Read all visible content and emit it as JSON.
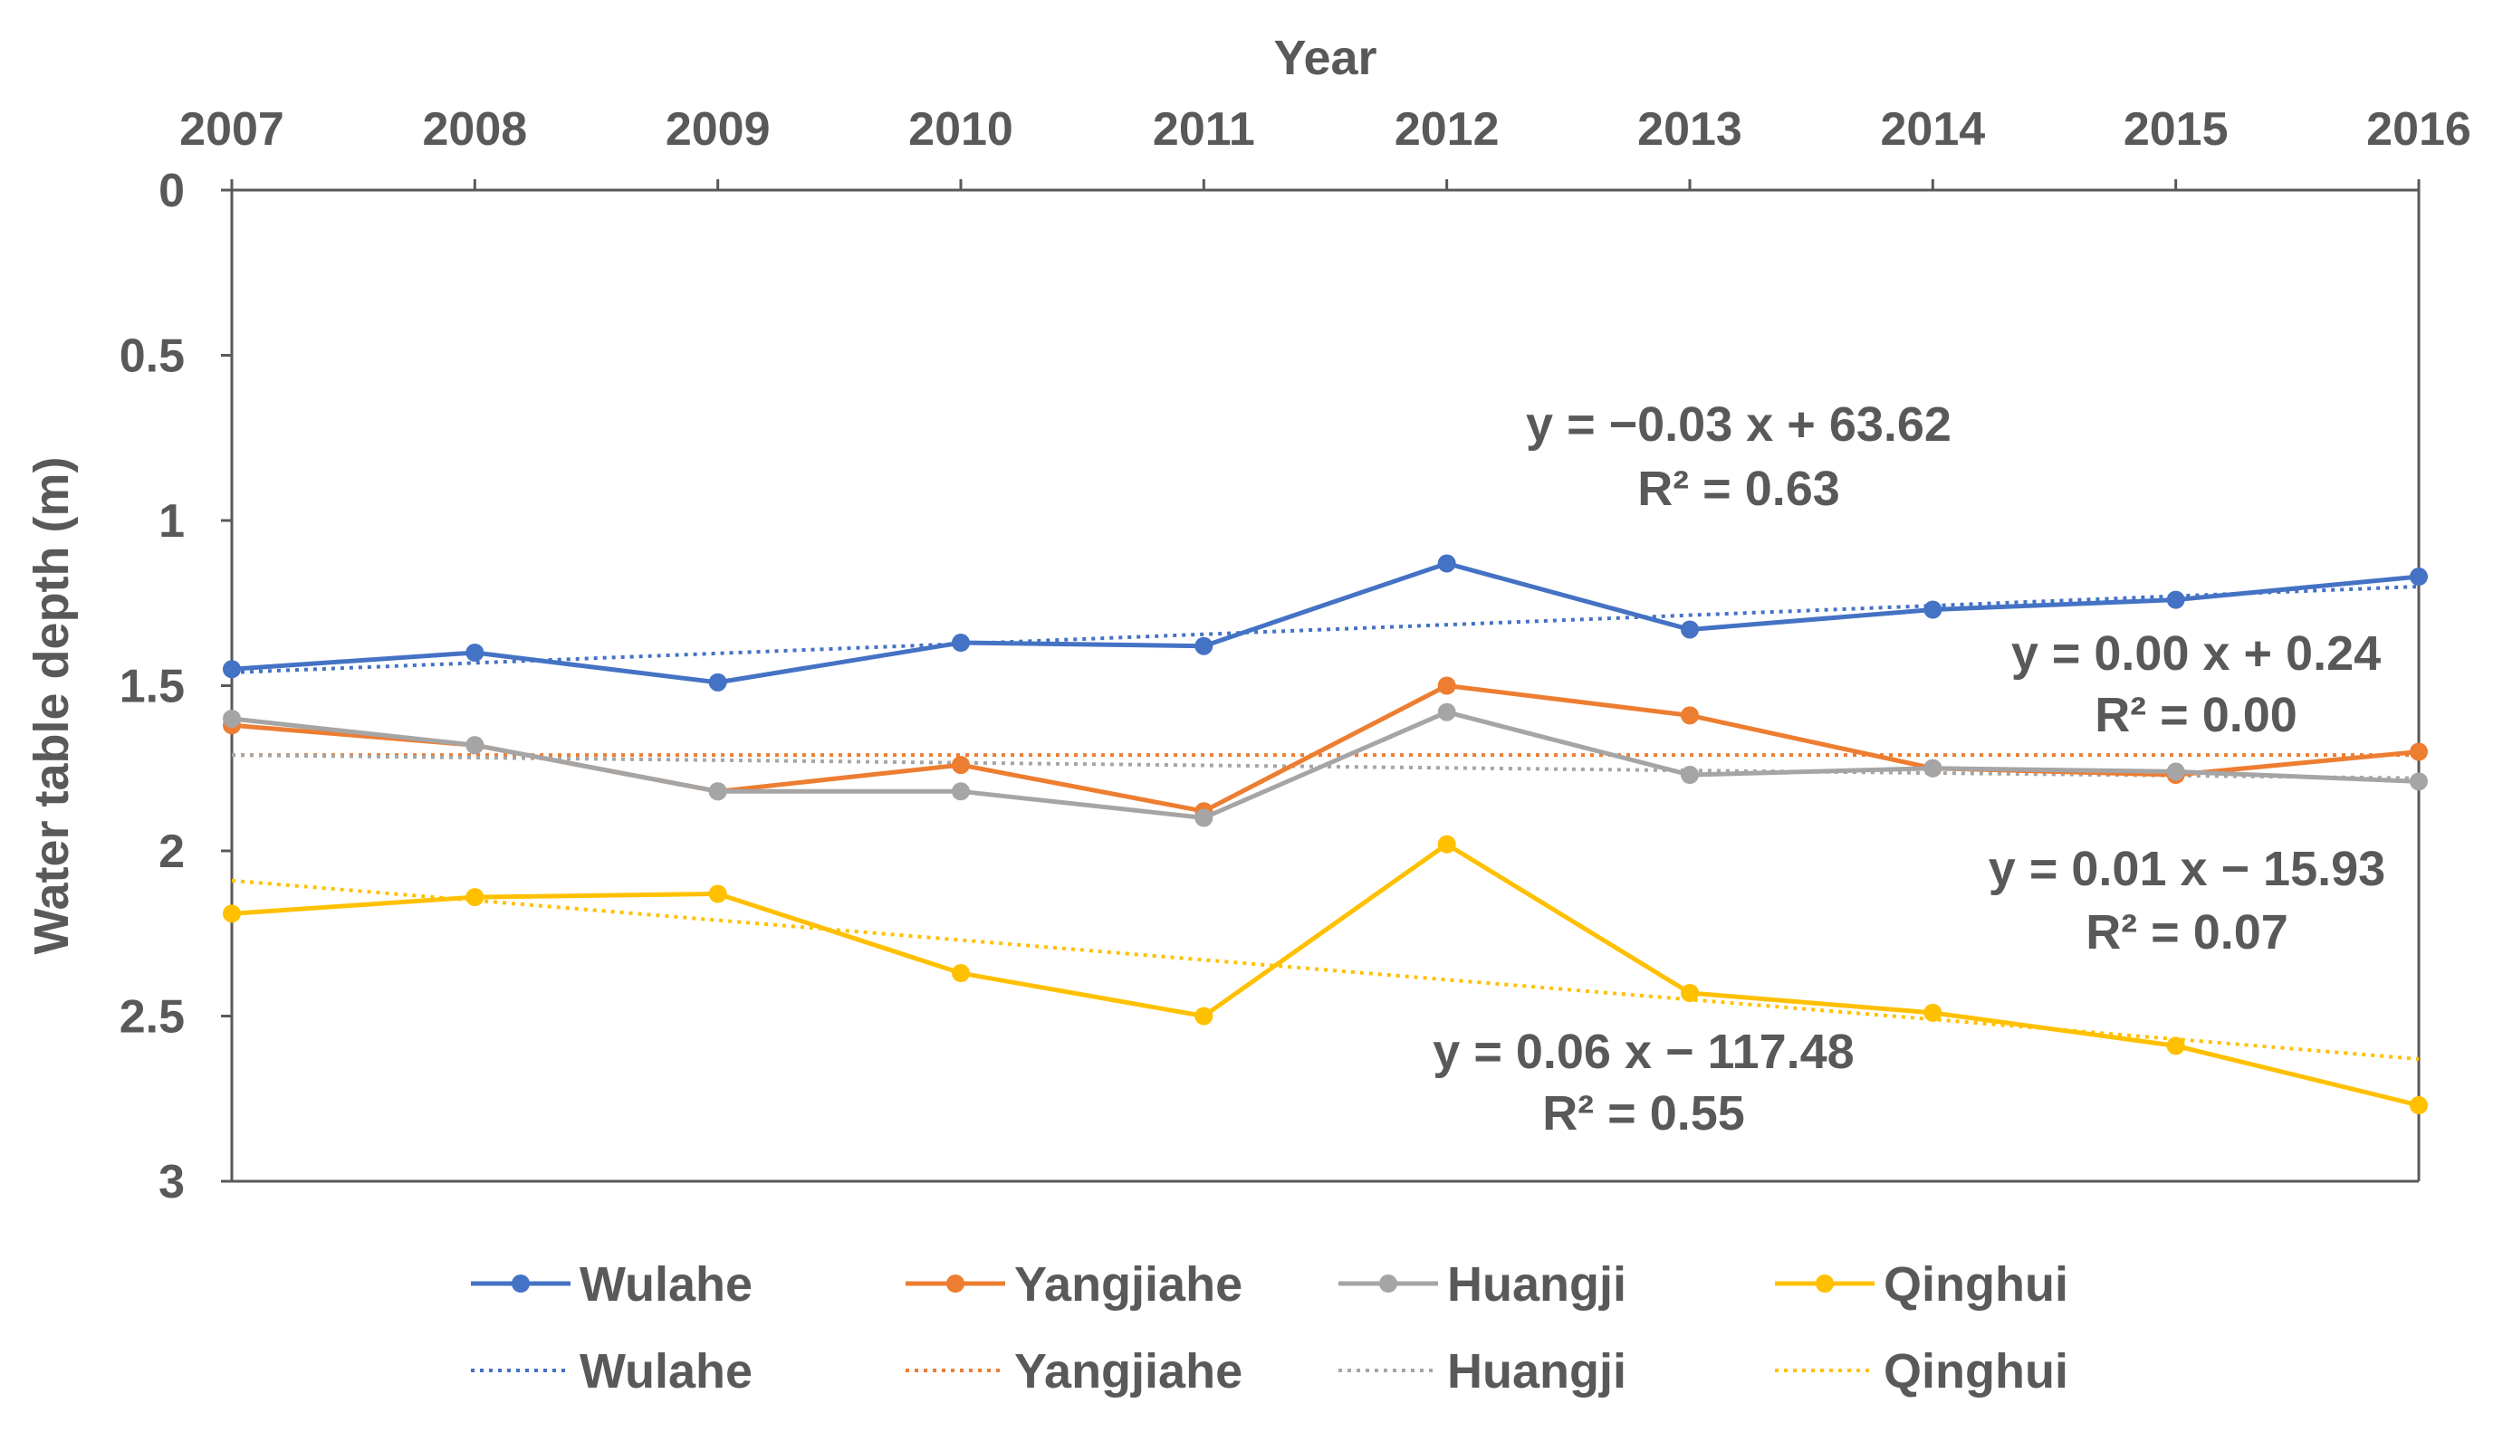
{
  "chart_data": {
    "type": "line",
    "xlabel": "Year",
    "ylabel": "Water table depth (m)",
    "x": [
      2007,
      2008,
      2009,
      2010,
      2011,
      2012,
      2013,
      2014,
      2015,
      2016
    ],
    "x_tick_labels": [
      "2007",
      "2008",
      "2009",
      "2010",
      "2011",
      "2012",
      "2013",
      "2014",
      "2015",
      "2016"
    ],
    "xlim": [
      2007,
      2016
    ],
    "x_axis_position": "top",
    "ylim": [
      0,
      3
    ],
    "y_inverted": true,
    "y_ticks": [
      0,
      0.5,
      1,
      1.5,
      2,
      2.5,
      3
    ],
    "y_tick_labels": [
      "0",
      "0.5",
      "1",
      "1.5",
      "2",
      "2.5",
      "3"
    ],
    "grid": false,
    "legend_position": "bottom",
    "series": [
      {
        "name": "Wulahe",
        "color": "#4472C4",
        "values": [
          1.45,
          1.4,
          1.49,
          1.37,
          1.38,
          1.13,
          1.33,
          1.27,
          1.24,
          1.17
        ]
      },
      {
        "name": "Yangjiahe",
        "color": "#ED7D31",
        "values": [
          1.62,
          1.68,
          1.82,
          1.74,
          1.88,
          1.5,
          1.59,
          1.75,
          1.77,
          1.7
        ]
      },
      {
        "name": "Huangji",
        "color": "#A5A5A5",
        "values": [
          1.6,
          1.68,
          1.82,
          1.82,
          1.9,
          1.58,
          1.77,
          1.75,
          1.76,
          1.79
        ]
      },
      {
        "name": "Qinghui",
        "color": "#FFC000",
        "values": [
          2.19,
          2.14,
          2.13,
          2.37,
          2.5,
          1.98,
          2.43,
          2.49,
          2.59,
          2.77
        ]
      }
    ],
    "trendlines": [
      {
        "name": "Wulahe",
        "color": "#4472C4",
        "type": "linear",
        "start": [
          2007,
          1.46
        ],
        "end": [
          2016,
          1.2
        ],
        "equation": "y = −0.03 x + 63.62",
        "r2": "R² = 0.63"
      },
      {
        "name": "Yangjiahe",
        "color": "#ED7D31",
        "type": "linear",
        "start": [
          2007,
          1.71
        ],
        "end": [
          2016,
          1.71
        ],
        "equation": "y = 0.00 x + 0.24",
        "r2": "R² = 0.00"
      },
      {
        "name": "Huangji",
        "color": "#A5A5A5",
        "type": "linear",
        "start": [
          2007,
          1.71
        ],
        "end": [
          2016,
          1.78
        ],
        "equation": "y = 0.01 x − 15.93",
        "r2": "R² = 0.07"
      },
      {
        "name": "Qinghui",
        "color": "#FFC000",
        "type": "linear",
        "start": [
          2007,
          2.09
        ],
        "end": [
          2016,
          2.63
        ],
        "equation": "y = 0.06 x − 117.48",
        "r2": "R² = 0.55"
      }
    ]
  }
}
